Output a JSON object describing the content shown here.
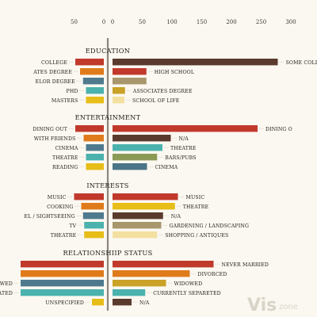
{
  "chart_data": {
    "type": "bar",
    "left_axis_ticks": [
      50,
      0
    ],
    "right_axis_ticks": [
      0,
      50,
      100,
      150,
      200,
      250,
      300
    ],
    "colors": {
      "dark_red": "#c0392b",
      "orange": "#e07b1c",
      "slate": "#4f7a8e",
      "teal": "#4bb2ad",
      "gold": "#e7bd17",
      "brown": "#5b3a2e",
      "olive_gold": "#c9a227",
      "tan": "#a8966c",
      "olive": "#8b9a55",
      "cream": "#f3dfa0",
      "steel": "#4a7488"
    },
    "sections": [
      {
        "title": "EDUCATION",
        "left": [
          {
            "label": "COLLEGE",
            "value": 48,
            "color": "#c0392b"
          },
          {
            "label": "ATES DEGREE",
            "value": 40,
            "color": "#e07b1c"
          },
          {
            "label": "ELOR DEGREE",
            "value": 35,
            "color": "#4f7a8e"
          },
          {
            "label": "PHD",
            "value": 30,
            "color": "#4bb2ad"
          },
          {
            "label": "MASTERS",
            "value": 30,
            "color": "#e7bd17"
          }
        ],
        "right": [
          {
            "label": "SOME COLLEGE",
            "value": 278,
            "color": "#5b3a2e"
          },
          {
            "label": "HIGH SCHOOL",
            "value": 57,
            "color": "#c0392b"
          },
          {
            "label": "",
            "value": 57,
            "color": "#a8966c"
          },
          {
            "label": "ASSOCIATES DEGREE",
            "value": 21,
            "color": "#c9a227"
          },
          {
            "label": "SCHOOL OF LIFE",
            "value": 20,
            "color": "#f3dfa0"
          }
        ]
      },
      {
        "title": "ENTERTAINMENT",
        "left": [
          {
            "label": "DINING OUT",
            "value": 48,
            "color": "#c0392b"
          },
          {
            "label": "WITH FRIENDS",
            "value": 34,
            "color": "#e07b1c"
          },
          {
            "label": "CINEMA",
            "value": 30,
            "color": "#4f7a8e"
          },
          {
            "label": "THEATRE",
            "value": 30,
            "color": "#4bb2ad"
          },
          {
            "label": "READING",
            "value": 30,
            "color": "#e7bd17"
          }
        ],
        "right": [
          {
            "label": "DINING O",
            "value": 244,
            "color": "#c0392b"
          },
          {
            "label": "N/A",
            "value": 98,
            "color": "#5b3a2e"
          },
          {
            "label": "THEATRE",
            "value": 84,
            "color": "#4bb2ad"
          },
          {
            "label": "BARS/PUBS",
            "value": 75,
            "color": "#8b9a55"
          },
          {
            "label": "CINEMA",
            "value": 58,
            "color": "#4a7488"
          }
        ]
      },
      {
        "title": "INTERESTS",
        "left": [
          {
            "label": "MUSIC",
            "value": 50,
            "color": "#c0392b"
          },
          {
            "label": "COOKING",
            "value": 38,
            "color": "#e07b1c"
          },
          {
            "label": "EL / SIGHTSEEING",
            "value": 35,
            "color": "#4f7a8e"
          },
          {
            "label": "TV",
            "value": 33,
            "color": "#4bb2ad"
          },
          {
            "label": "THEATRE",
            "value": 33,
            "color": "#e7bd17"
          }
        ],
        "right": [
          {
            "label": "MUSIC",
            "value": 110,
            "color": "#c0392b"
          },
          {
            "label": "THEATRE",
            "value": 105,
            "color": "#e7bd17"
          },
          {
            "label": "N/A",
            "value": 85,
            "color": "#5b3a2e"
          },
          {
            "label": "GARDENING / LANDSCAPING",
            "value": 82,
            "color": "#a8966c"
          },
          {
            "label": "SHOPPING / ANTIQUES",
            "value": 75,
            "color": "#f3dfa0"
          }
        ]
      },
      {
        "title": "RELATIONSHIIP STATUS",
        "left": [
          {
            "label": "",
            "value": 140,
            "color": "#c0392b"
          },
          {
            "label": "",
            "value": 140,
            "color": "#e07b1c"
          },
          {
            "label": "WED",
            "value": 140,
            "color": "#4f7a8e"
          },
          {
            "label": "ARATED",
            "value": 140,
            "color": "#4bb2ad"
          },
          {
            "label": "UNSPECIFIED",
            "value": 20,
            "color": "#e7bd17"
          }
        ],
        "right": [
          {
            "label": "NEVER MARRIED",
            "value": 170,
            "color": "#c0392b"
          },
          {
            "label": "DIVORCED",
            "value": 130,
            "color": "#e07b1c"
          },
          {
            "label": "WIDOWED",
            "value": 90,
            "color": "#c9a227"
          },
          {
            "label": "CURRENTLY SEPARETED",
            "value": 55,
            "color": "#4bb2ad"
          },
          {
            "label": "N/A",
            "value": 32,
            "color": "#5b3a2e"
          }
        ]
      }
    ]
  },
  "watermark": {
    "main": "Vis",
    "sub": "zone"
  }
}
